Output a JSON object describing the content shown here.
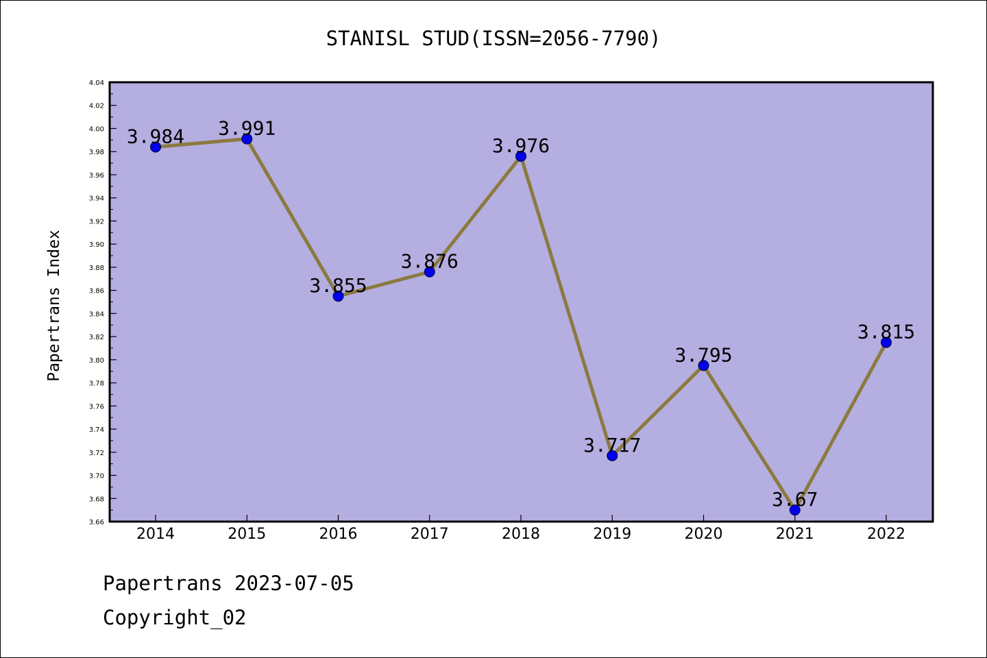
{
  "chart_data": {
    "type": "line",
    "title": "STANISL STUD(ISSN=2056-7790)",
    "xlabel": "",
    "ylabel": "Papertrans Index",
    "categories": [
      "2014",
      "2015",
      "2016",
      "2017",
      "2018",
      "2019",
      "2020",
      "2021",
      "2022"
    ],
    "series": [
      {
        "values": [
          3.984,
          3.991,
          3.855,
          3.876,
          3.976,
          3.717,
          3.795,
          3.67,
          3.815
        ],
        "data_labels": [
          "3.984",
          "3.991",
          "3.855",
          "3.876",
          "3.976",
          "3.717",
          "3.795",
          "3.67",
          "3.815"
        ]
      }
    ],
    "ylim": [
      3.66,
      4.04
    ],
    "yticks": [
      "3.66",
      "3.68",
      "3.70",
      "3.72",
      "3.74",
      "3.76",
      "3.78",
      "3.80",
      "3.82",
      "3.84",
      "3.86",
      "3.88",
      "3.90",
      "3.92",
      "3.94",
      "3.96",
      "3.98",
      "4.00",
      "4.02",
      "4.04"
    ],
    "grid": false,
    "legend": "none",
    "colors": {
      "plot_background": "#b5aee1",
      "line": "#8b7a3e",
      "marker": "#0000ee"
    }
  },
  "footer": {
    "line1": "Papertrans 2023-07-05",
    "line2": "Copyright_02"
  }
}
